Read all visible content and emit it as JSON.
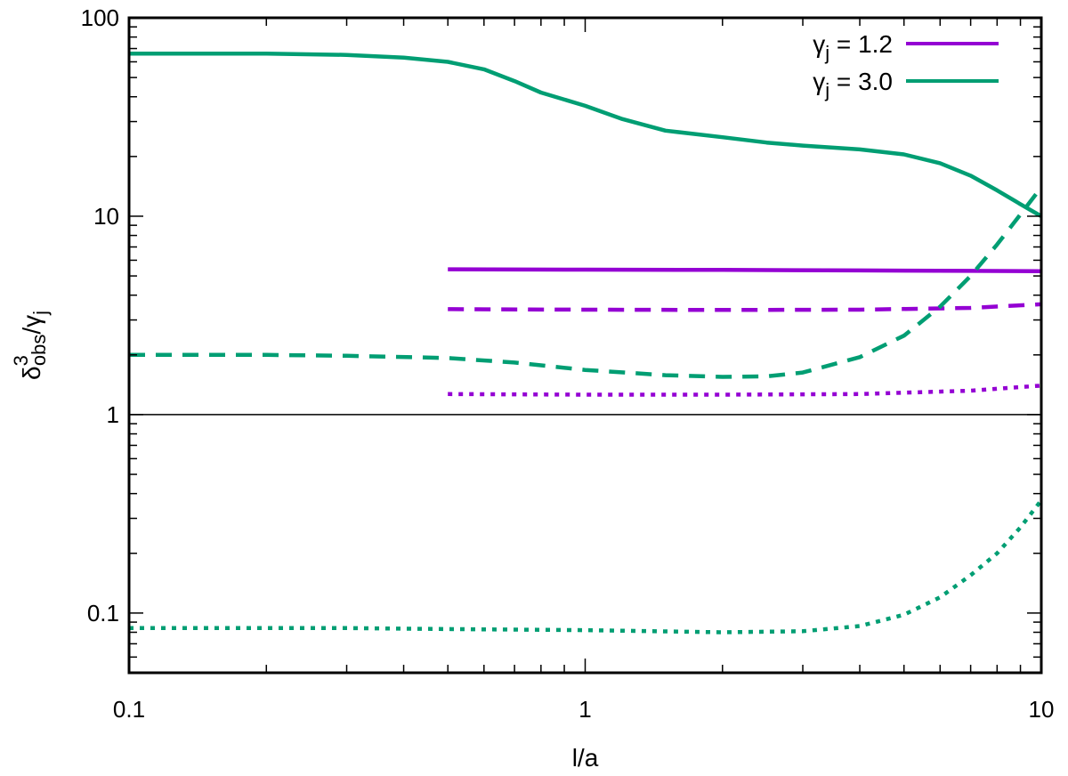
{
  "chart_data": {
    "type": "line",
    "xscale": "log",
    "yscale": "log",
    "xlim": [
      0.1,
      10
    ],
    "ylim": [
      0.05,
      100
    ],
    "x_ticks": [
      {
        "value": 0.1,
        "label": "0.1"
      },
      {
        "value": 1,
        "label": "1"
      },
      {
        "value": 10,
        "label": "10"
      }
    ],
    "y_ticks": [
      {
        "value": 0.1,
        "label": "0.1"
      },
      {
        "value": 1,
        "label": "1"
      },
      {
        "value": 10,
        "label": "10"
      },
      {
        "value": 100,
        "label": "100"
      }
    ],
    "xlabel": "l/a",
    "ylabel": {
      "base": "δ",
      "sup": "3",
      "sub": "obs",
      "rest": "/γ",
      "rest_sub": "j"
    },
    "legend": {
      "placement": "top-right",
      "entries": [
        {
          "base": "γ",
          "sub": "j",
          "text": " = 1.2",
          "color": "#9400d3"
        },
        {
          "base": "γ",
          "sub": "j",
          "text": " = 3.0",
          "color": "#009e73"
        }
      ]
    },
    "reference_line": {
      "y": 1,
      "color": "#000000"
    },
    "grid": false,
    "series": [
      {
        "color": "#9400d3",
        "dash": "solid",
        "points": [
          [
            0.5,
            5.4
          ],
          [
            1,
            5.38
          ],
          [
            2,
            5.36
          ],
          [
            4,
            5.33
          ],
          [
            7,
            5.3
          ],
          [
            10,
            5.28
          ]
        ]
      },
      {
        "color": "#9400d3",
        "dash": "dashed",
        "points": [
          [
            0.5,
            3.4
          ],
          [
            1,
            3.38
          ],
          [
            2,
            3.37
          ],
          [
            4,
            3.38
          ],
          [
            7,
            3.45
          ],
          [
            10,
            3.6
          ]
        ]
      },
      {
        "color": "#9400d3",
        "dash": "dotted",
        "points": [
          [
            0.5,
            1.27
          ],
          [
            1,
            1.26
          ],
          [
            2,
            1.26
          ],
          [
            4,
            1.27
          ],
          [
            7,
            1.32
          ],
          [
            10,
            1.4
          ]
        ]
      },
      {
        "color": "#009e73",
        "dash": "solid",
        "points": [
          [
            0.1,
            66
          ],
          [
            0.2,
            66
          ],
          [
            0.3,
            65
          ],
          [
            0.4,
            63
          ],
          [
            0.5,
            60
          ],
          [
            0.6,
            55
          ],
          [
            0.7,
            48
          ],
          [
            0.8,
            42
          ],
          [
            1,
            36
          ],
          [
            1.2,
            31
          ],
          [
            1.5,
            27
          ],
          [
            2,
            25
          ],
          [
            2.5,
            23.5
          ],
          [
            3,
            22.7
          ],
          [
            4,
            21.7
          ],
          [
            5,
            20.5
          ],
          [
            6,
            18.5
          ],
          [
            7,
            16
          ],
          [
            8,
            13.5
          ],
          [
            9,
            11.5
          ],
          [
            10,
            10
          ]
        ]
      },
      {
        "color": "#009e73",
        "dash": "dashed",
        "points": [
          [
            0.1,
            2.0
          ],
          [
            0.2,
            2.0
          ],
          [
            0.3,
            1.98
          ],
          [
            0.5,
            1.93
          ],
          [
            0.7,
            1.83
          ],
          [
            1,
            1.68
          ],
          [
            1.5,
            1.58
          ],
          [
            2,
            1.55
          ],
          [
            2.5,
            1.56
          ],
          [
            3,
            1.63
          ],
          [
            4,
            1.95
          ],
          [
            5,
            2.5
          ],
          [
            6,
            3.5
          ],
          [
            7,
            5.0
          ],
          [
            8,
            7.2
          ],
          [
            9,
            10.2
          ],
          [
            10,
            14
          ]
        ]
      },
      {
        "color": "#009e73",
        "dash": "dotted",
        "points": [
          [
            0.1,
            0.084
          ],
          [
            0.3,
            0.084
          ],
          [
            0.5,
            0.083
          ],
          [
            1,
            0.082
          ],
          [
            2,
            0.08
          ],
          [
            3,
            0.081
          ],
          [
            4,
            0.086
          ],
          [
            5,
            0.098
          ],
          [
            6,
            0.12
          ],
          [
            7,
            0.155
          ],
          [
            8,
            0.2
          ],
          [
            9,
            0.27
          ],
          [
            10,
            0.37
          ]
        ]
      }
    ]
  }
}
